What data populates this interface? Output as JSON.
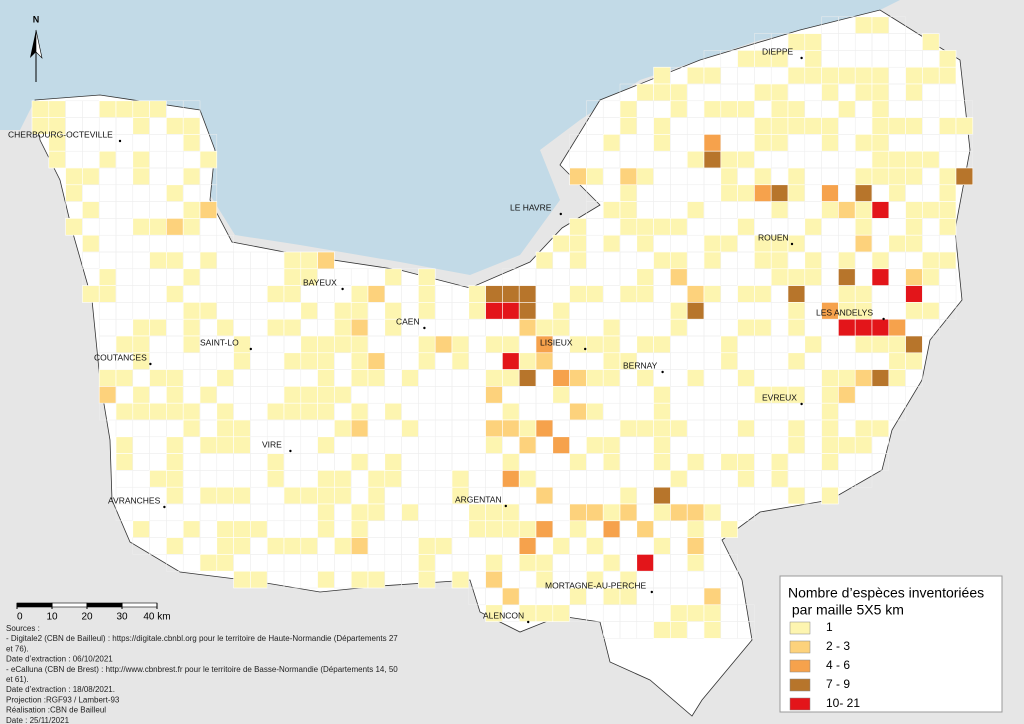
{
  "north": "N",
  "cities": [
    {
      "name": "CHERBOURG-OCTEVILLE"
    },
    {
      "name": "DIEPPE"
    },
    {
      "name": "LE HAVRE"
    },
    {
      "name": "ROUEN"
    },
    {
      "name": "BAYEUX"
    },
    {
      "name": "CAEN"
    },
    {
      "name": "LES ANDELYS"
    },
    {
      "name": "SAINT-LO"
    },
    {
      "name": "LISIEUX"
    },
    {
      "name": "COUTANCES"
    },
    {
      "name": "BERNAY"
    },
    {
      "name": "EVREUX"
    },
    {
      "name": "VIRE"
    },
    {
      "name": "ARGENTAN"
    },
    {
      "name": "AVRANCHES"
    },
    {
      "name": "MORTAGNE-AU-PERCHE"
    },
    {
      "name": "ALENCON"
    }
  ],
  "legend": {
    "title_line1": "Nombre d’espèces inventoriées",
    "title_line2": " par maille 5X5 km",
    "items": [
      {
        "label": "1",
        "color": "#fdf5b0"
      },
      {
        "label": "2 - 3",
        "color": "#fdd27c"
      },
      {
        "label": "4 - 6",
        "color": "#f6a24c"
      },
      {
        "label": "7 - 9",
        "color": "#b7752b"
      },
      {
        "label": "10- 21",
        "color": "#e3151a"
      }
    ]
  },
  "scale_ticks": [
    0,
    10,
    20,
    30,
    {
      "value": 40,
      "label": "40 km"
    }
  ],
  "sources": [
    "Sources :",
    "- Digitale2 (CBN de Bailleul) : https://digitale.cbnbl.org pour le territoire de Haute-Normandie (Départements 27",
    "et 76).",
    "Date d’extraction : 06/10/2021",
    "- eCalluna (CBN de Brest) : http://www.cbnbrest.fr pour le territoire de Basse-Normandie (Départements 14, 50",
    "et 61).",
    "Date d’extraction : 18/08/2021.",
    "Projection :RGF93 / Lambert-93",
    "Réalisation :CBN de Bailleul",
    "Date : 25/11/2021"
  ]
}
